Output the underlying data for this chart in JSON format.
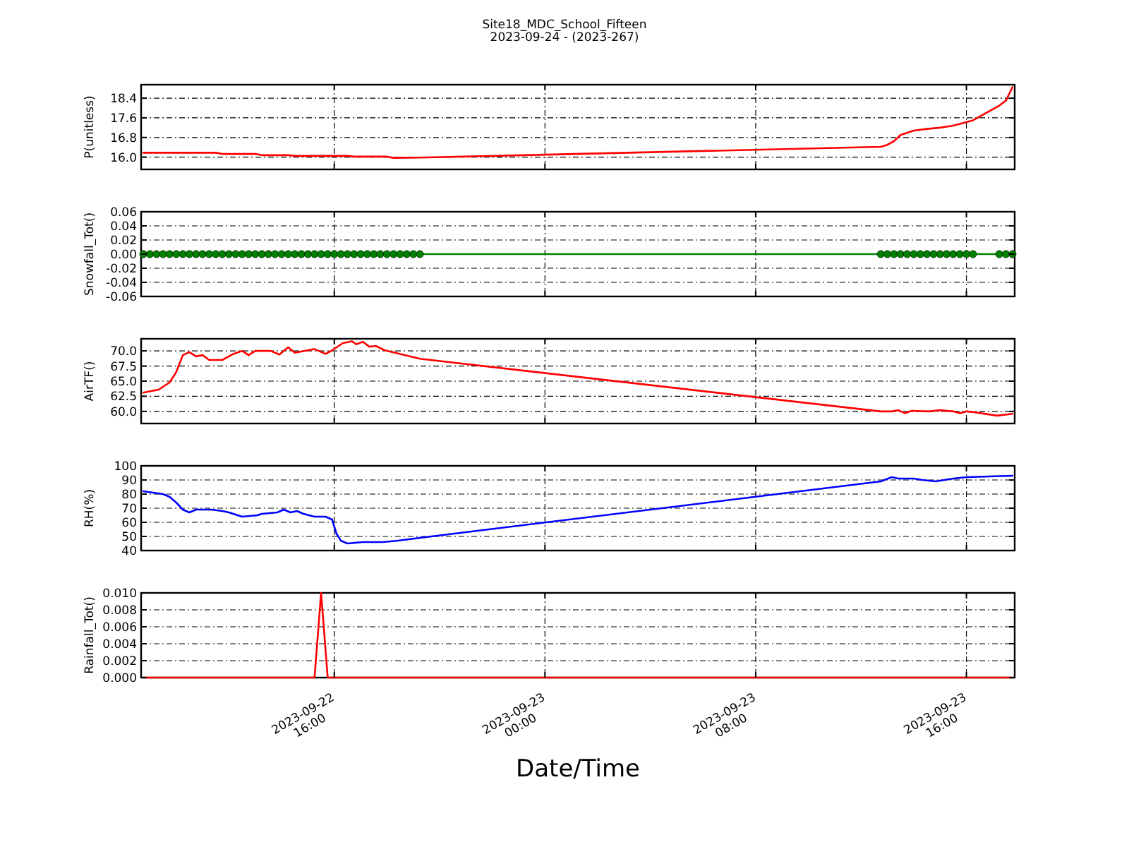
{
  "chart_data": [
    {
      "type": "line",
      "title": "Site18_MDC_School_Fifteen",
      "subtitle": "2023-09-24 - (2023-267)",
      "ylabel": "P(unitless)",
      "color": "#ff0000",
      "grid": true,
      "tick_labels": "y",
      "line_style": "solid",
      "x": [
        "2023-09-22T08:45",
        "2023-09-22T11:30",
        "2023-09-22T11:45",
        "2023-09-22T13:00",
        "2023-09-22T13:15",
        "2023-09-22T14:15",
        "2023-09-22T14:30",
        "2023-09-22T16:30",
        "2023-09-22T16:45",
        "2023-09-22T18:00",
        "2023-09-22T18:15",
        "2023-09-22T19:15",
        "2023-09-23T12:45",
        "2023-09-23T13:00",
        "2023-09-23T13:15",
        "2023-09-23T13:30",
        "2023-09-23T14:00",
        "2023-09-23T14:30",
        "2023-09-23T15:00",
        "2023-09-23T15:30",
        "2023-09-23T16:15",
        "2023-09-23T17:15",
        "2023-09-23T17:30",
        "2023-09-23T17:45"
      ],
      "values": [
        16.18,
        16.18,
        16.13,
        16.13,
        16.08,
        16.08,
        16.05,
        16.05,
        16.02,
        16.02,
        15.97,
        15.98,
        16.42,
        16.5,
        16.65,
        16.9,
        17.08,
        17.15,
        17.2,
        17.28,
        17.5,
        18.1,
        18.3,
        18.85
      ],
      "xlim": [
        "2023-09-22T08:40",
        "2023-09-23T17:50"
      ],
      "xticks": [
        {
          "value": "2023-09-22T16:00",
          "label": null
        },
        {
          "value": "2023-09-23T00:00",
          "label": null
        },
        {
          "value": "2023-09-23T08:00",
          "label": null
        },
        {
          "value": "2023-09-23T16:00",
          "label": null
        }
      ],
      "ylim": [
        15.5,
        18.95
      ],
      "yticks": [
        {
          "value": 16,
          "label": "16.0"
        },
        {
          "value": 16.8,
          "label": "16.8"
        },
        {
          "value": 17.6,
          "label": "17.6"
        },
        {
          "value": 18.4,
          "label": "18.4"
        }
      ]
    },
    {
      "type": "line",
      "ylabel": "Snowfall_Tot()",
      "color": "#008000",
      "grid": true,
      "tick_labels": "y",
      "marker": "circle",
      "line_style": "solid",
      "x": [
        "2023-09-22T08:45",
        "2023-09-22T09:00",
        "2023-09-22T09:15",
        "2023-09-22T09:30",
        "2023-09-22T09:45",
        "2023-09-22T10:00",
        "2023-09-22T10:15",
        "2023-09-22T10:30",
        "2023-09-22T10:45",
        "2023-09-22T11:00",
        "2023-09-22T11:15",
        "2023-09-22T11:30",
        "2023-09-22T11:45",
        "2023-09-22T12:00",
        "2023-09-22T12:15",
        "2023-09-22T12:30",
        "2023-09-22T12:45",
        "2023-09-22T13:00",
        "2023-09-22T13:15",
        "2023-09-22T13:30",
        "2023-09-22T13:45",
        "2023-09-22T14:00",
        "2023-09-22T14:15",
        "2023-09-22T14:30",
        "2023-09-22T14:45",
        "2023-09-22T15:00",
        "2023-09-22T15:15",
        "2023-09-22T15:30",
        "2023-09-22T15:45",
        "2023-09-22T16:00",
        "2023-09-22T16:15",
        "2023-09-22T16:30",
        "2023-09-22T16:45",
        "2023-09-22T17:00",
        "2023-09-22T17:15",
        "2023-09-22T17:30",
        "2023-09-22T17:45",
        "2023-09-22T18:00",
        "2023-09-22T18:15",
        "2023-09-22T18:30",
        "2023-09-22T18:45",
        "2023-09-22T19:00",
        "2023-09-22T19:15",
        "2023-09-23T12:45",
        "2023-09-23T13:00",
        "2023-09-23T13:15",
        "2023-09-23T13:30",
        "2023-09-23T13:45",
        "2023-09-23T14:00",
        "2023-09-23T14:15",
        "2023-09-23T14:30",
        "2023-09-23T14:45",
        "2023-09-23T15:00",
        "2023-09-23T15:15",
        "2023-09-23T15:30",
        "2023-09-23T15:45",
        "2023-09-23T16:00",
        "2023-09-23T16:15",
        "2023-09-23T17:15",
        "2023-09-23T17:30",
        "2023-09-23T17:45"
      ],
      "values": [
        0,
        0,
        0,
        0,
        0,
        0,
        0,
        0,
        0,
        0,
        0,
        0,
        0,
        0,
        0,
        0,
        0,
        0,
        0,
        0,
        0,
        0,
        0,
        0,
        0,
        0,
        0,
        0,
        0,
        0,
        0,
        0,
        0,
        0,
        0,
        0,
        0,
        0,
        0,
        0,
        0,
        0,
        0,
        0,
        0,
        0,
        0,
        0,
        0,
        0,
        0,
        0,
        0,
        0,
        0,
        0,
        0,
        0,
        0,
        0,
        0
      ],
      "xlim": [
        "2023-09-22T08:40",
        "2023-09-23T17:50"
      ],
      "xticks": [
        {
          "value": "2023-09-22T16:00",
          "label": null
        },
        {
          "value": "2023-09-23T00:00",
          "label": null
        },
        {
          "value": "2023-09-23T08:00",
          "label": null
        },
        {
          "value": "2023-09-23T16:00",
          "label": null
        }
      ],
      "ylim": [
        -0.06,
        0.06
      ],
      "yticks": [
        {
          "value": -0.06,
          "label": "-0.06"
        },
        {
          "value": -0.04,
          "label": "-0.04"
        },
        {
          "value": -0.02,
          "label": "-0.02"
        },
        {
          "value": 0,
          "label": "0.00"
        },
        {
          "value": 0.02,
          "label": "0.02"
        },
        {
          "value": 0.04,
          "label": "0.04"
        },
        {
          "value": 0.06,
          "label": "0.06"
        }
      ]
    },
    {
      "type": "line",
      "ylabel": "AirTF()",
      "color": "#ff0000",
      "grid": true,
      "tick_labels": "y",
      "line_style": "solid",
      "x": [
        "2023-09-22T08:45",
        "2023-09-22T09:20",
        "2023-09-22T09:45",
        "2023-09-22T10:00",
        "2023-09-22T10:15",
        "2023-09-22T10:30",
        "2023-09-22T10:45",
        "2023-09-22T11:00",
        "2023-09-22T11:15",
        "2023-09-22T11:45",
        "2023-09-22T12:10",
        "2023-09-22T12:30",
        "2023-09-22T12:45",
        "2023-09-22T13:00",
        "2023-09-22T13:35",
        "2023-09-22T13:55",
        "2023-09-22T14:15",
        "2023-09-22T14:30",
        "2023-09-22T15:15",
        "2023-09-22T15:40",
        "2023-09-22T15:55",
        "2023-09-22T16:20",
        "2023-09-22T16:40",
        "2023-09-22T16:50",
        "2023-09-22T17:05",
        "2023-09-22T17:20",
        "2023-09-22T17:35",
        "2023-09-22T17:55",
        "2023-09-22T19:15",
        "2023-09-23T12:45",
        "2023-09-23T13:10",
        "2023-09-23T13:25",
        "2023-09-23T13:40",
        "2023-09-23T13:55",
        "2023-09-23T14:35",
        "2023-09-23T15:00",
        "2023-09-23T15:30",
        "2023-09-23T15:45",
        "2023-09-23T16:00",
        "2023-09-23T16:15",
        "2023-09-23T17:10",
        "2023-09-23T17:45"
      ],
      "values": [
        63.1,
        63.6,
        64.8,
        66.5,
        69.3,
        69.8,
        69.1,
        69.3,
        68.5,
        68.5,
        69.5,
        70.0,
        69.3,
        70.0,
        70.0,
        69.4,
        70.6,
        69.7,
        70.3,
        69.5,
        70.1,
        71.3,
        71.6,
        71.1,
        71.5,
        70.7,
        70.8,
        70.1,
        68.7,
        60.0,
        60.0,
        60.2,
        59.7,
        60.1,
        60.0,
        60.2,
        60.0,
        59.7,
        60.0,
        59.9,
        59.3,
        59.6
      ],
      "xlim": [
        "2023-09-22T08:40",
        "2023-09-23T17:50"
      ],
      "xticks": [
        {
          "value": "2023-09-22T16:00",
          "label": null
        },
        {
          "value": "2023-09-23T00:00",
          "label": null
        },
        {
          "value": "2023-09-23T08:00",
          "label": null
        },
        {
          "value": "2023-09-23T16:00",
          "label": null
        }
      ],
      "ylim": [
        58,
        72
      ],
      "yticks": [
        {
          "value": 60,
          "label": "60.0"
        },
        {
          "value": 62.5,
          "label": "62.5"
        },
        {
          "value": 65,
          "label": "65.0"
        },
        {
          "value": 67.5,
          "label": "67.5"
        },
        {
          "value": 70,
          "label": "70.0"
        }
      ]
    },
    {
      "type": "line",
      "ylabel": "RH(%)",
      "color": "#0000ff",
      "grid": true,
      "tick_labels": "y",
      "line_style": "solid",
      "x": [
        "2023-09-22T08:45",
        "2023-09-22T09:30",
        "2023-09-22T09:45",
        "2023-09-22T10:00",
        "2023-09-22T10:15",
        "2023-09-22T10:30",
        "2023-09-22T10:45",
        "2023-09-22T11:20",
        "2023-09-22T11:45",
        "2023-09-22T12:00",
        "2023-09-22T12:30",
        "2023-09-22T13:05",
        "2023-09-22T13:15",
        "2023-09-22T13:50",
        "2023-09-22T14:05",
        "2023-09-22T14:20",
        "2023-09-22T14:35",
        "2023-09-22T14:50",
        "2023-09-22T15:15",
        "2023-09-22T15:40",
        "2023-09-22T15:55",
        "2023-09-22T16:05",
        "2023-09-22T16:15",
        "2023-09-22T16:30",
        "2023-09-22T17:05",
        "2023-09-22T17:50",
        "2023-09-22T18:25",
        "2023-09-22T19:15",
        "2023-09-23T12:45",
        "2023-09-23T13:10",
        "2023-09-23T13:25",
        "2023-09-23T14:00",
        "2023-09-23T14:20",
        "2023-09-23T14:50",
        "2023-09-23T15:30",
        "2023-09-23T16:00",
        "2023-09-23T17:45"
      ],
      "values": [
        82,
        80,
        78,
        74,
        69,
        67,
        69,
        69,
        68,
        67,
        64,
        65,
        66,
        67,
        69,
        67,
        68,
        66,
        64,
        64,
        62,
        52,
        47,
        45,
        46,
        46,
        47,
        49,
        89,
        92,
        91,
        91,
        90,
        89,
        91,
        92,
        93
      ],
      "xlim": [
        "2023-09-22T08:40",
        "2023-09-23T17:50"
      ],
      "xticks": [
        {
          "value": "2023-09-22T16:00",
          "label": null
        },
        {
          "value": "2023-09-23T00:00",
          "label": null
        },
        {
          "value": "2023-09-23T08:00",
          "label": null
        },
        {
          "value": "2023-09-23T16:00",
          "label": null
        }
      ],
      "ylim": [
        40,
        100
      ],
      "yticks": [
        40,
        50,
        60,
        70,
        80,
        90,
        100
      ]
    },
    {
      "type": "line",
      "ylabel": "Rainfall_Tot()",
      "xlabel": "Date/Time",
      "color": "#ff0000",
      "grid": true,
      "line_style": "solid",
      "x": [
        "2023-09-22T08:45",
        "2023-09-22T15:15",
        "2023-09-22T15:30",
        "2023-09-22T15:45",
        "2023-09-22T19:15",
        "2023-09-23T12:45",
        "2023-09-23T17:45"
      ],
      "values": [
        0,
        0,
        0.01,
        0,
        0,
        0,
        0
      ],
      "xlim": [
        "2023-09-22T08:40",
        "2023-09-23T17:50"
      ],
      "xticks": [
        {
          "value": "2023-09-22T16:00",
          "label": "2023-09-22\n16:00"
        },
        {
          "value": "2023-09-23T00:00",
          "label": "2023-09-23\n00:00"
        },
        {
          "value": "2023-09-23T08:00",
          "label": "2023-09-23\n08:00"
        },
        {
          "value": "2023-09-23T16:00",
          "label": "2023-09-23\n16:00"
        }
      ],
      "ylim": [
        0,
        0.01
      ],
      "yticks": [
        {
          "value": 0,
          "label": "0.000"
        },
        {
          "value": 0.002,
          "label": "0.002"
        },
        {
          "value": 0.004,
          "label": "0.004"
        },
        {
          "value": 0.006,
          "label": "0.006"
        },
        {
          "value": 0.008,
          "label": "0.008"
        },
        {
          "value": 0.01,
          "label": "0.010"
        }
      ]
    }
  ]
}
